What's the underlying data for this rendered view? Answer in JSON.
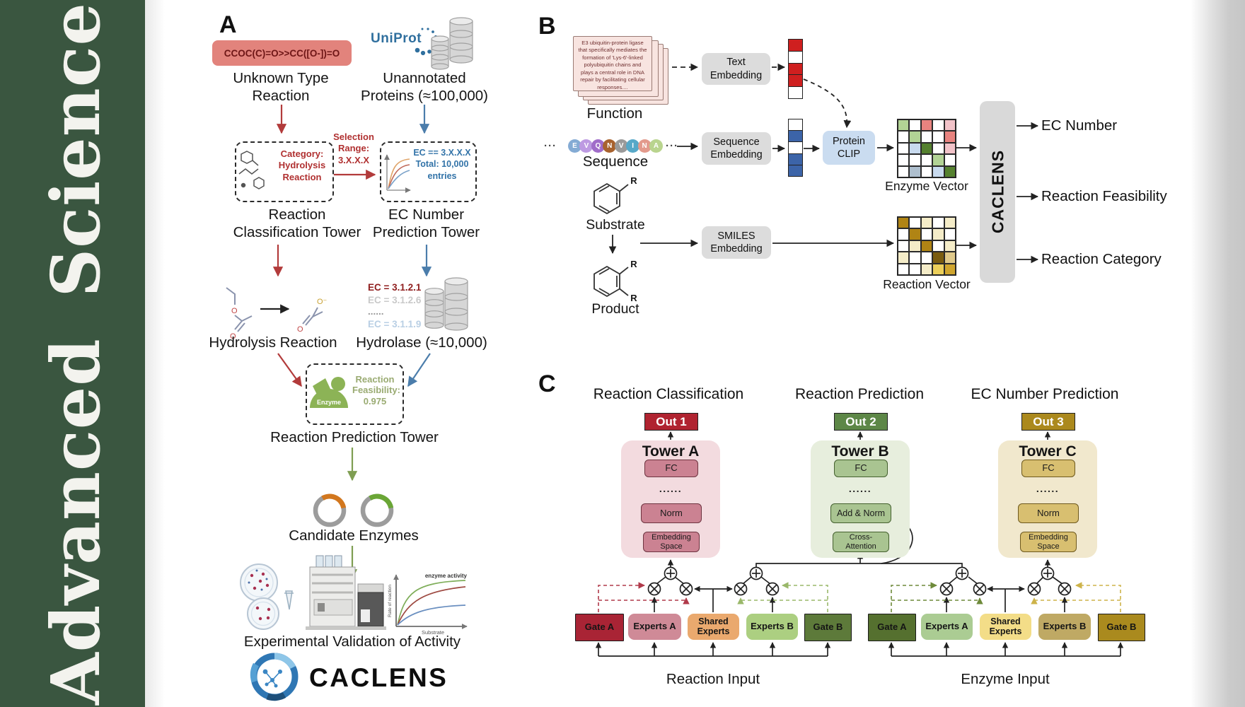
{
  "journal": {
    "name_words": [
      "Advanced",
      "Science"
    ],
    "bar_color": "#3a5640"
  },
  "panels": {
    "a": {
      "label": "A",
      "smiles_box": "CCOC(C)=O>>CC([O-])=O",
      "unknown_reaction": "Unknown Type\nReaction",
      "uniprot_logo": "UniProt",
      "unannotated": "Unannotated\nProteins (≈100,000)",
      "selection_range": "Selection\nRange:\n3.X.X.X",
      "category_box": "Category:\nHydrolysis\nReaction",
      "ec_filter_box": "EC == 3.X.X.X\nTotal: 10,000\nentries",
      "classification_tower": "Reaction\nClassification Tower",
      "ec_tower": "EC Number\nPrediction Tower",
      "ec_list": [
        {
          "text": "EC = 3.1.2.1",
          "color": "#8f1d1d"
        },
        {
          "text": "EC = 3.1.2.6",
          "color": "#c9c9c9"
        },
        {
          "text": "......",
          "color": "#9a9a9a"
        },
        {
          "text": "EC = 3.1.1.9",
          "color": "#b9cfe4"
        }
      ],
      "hydrolysis_reaction": "Hydrolysis Reaction",
      "hydrolase": "Hydrolase (≈10,000)",
      "enzyme_blob": "Enzyme",
      "feasibility": "Reaction\nFeasibility:\n0.975",
      "prediction_tower": "Reaction Prediction Tower",
      "candidate_enzymes": "Candidate Enzymes",
      "activity_plot": {
        "ylabel": "Rate of reaction",
        "xlabel": "Substrate",
        "annotation": "enzyme activity"
      },
      "validation": "Experimental Validation of Activity",
      "brand": "CACLENS",
      "atoms": {
        "o": "O",
        "o_minus": "O⁻"
      }
    },
    "b": {
      "label": "B",
      "function_card": "E3 ubiquitin-protein ligase that specifically mediates the formation of 'Lys-6'-linked polyubiquitin chains and plays a central role in DNA repair by facilitating cellular responses....",
      "function_label": "Function",
      "ellipsis": "···",
      "sequence": [
        {
          "letter": "E",
          "color": "#84abd4"
        },
        {
          "letter": "V",
          "color": "#bd9ae2"
        },
        {
          "letter": "Q",
          "color": "#a06cc9"
        },
        {
          "letter": "N",
          "color": "#a8622e"
        },
        {
          "letter": "V",
          "color": "#9a9a9a"
        },
        {
          "letter": "I",
          "color": "#57a8c8"
        },
        {
          "letter": "N",
          "color": "#e39a8c"
        },
        {
          "letter": "A",
          "color": "#b9d48e"
        }
      ],
      "sequence_label": "Sequence",
      "substrate_label": "Substrate",
      "product_label": "Product",
      "r_group": "R",
      "text_embedding": "Text\nEmbedding",
      "sequence_embedding": "Sequence\nEmbedding",
      "smiles_embedding": "SMILES\nEmbedding",
      "protein_clip": "Protein\nCLIP",
      "text_vector": [
        "#cf1f1f",
        "#ffffff",
        "#cf1f1f",
        "#cf1f1f",
        "#ffffff"
      ],
      "sequence_vector": [
        "#ffffff",
        "#3c64a8",
        "#ffffff",
        "#3c64a8",
        "#3c64a8"
      ],
      "enzyme_vector": {
        "label": "Enzyme Vector",
        "cells": [
          [
            "#b2d395",
            "#ffffff",
            "#e8837f",
            "#ffffff",
            "#f2c3c9"
          ],
          [
            "#ffffff",
            "#b2d395",
            "#ffffff",
            "#ffffff",
            "#e8837f"
          ],
          [
            "#ffffff",
            "#c8daee",
            "#55812f",
            "#ffffff",
            "#f2c3c9"
          ],
          [
            "#ffffff",
            "#ffffff",
            "#ffffff",
            "#b2d395",
            "#ffffff"
          ],
          [
            "#ffffff",
            "#aebfce",
            "#ffffff",
            "#c8daee",
            "#55812f"
          ]
        ]
      },
      "reaction_vector": {
        "label": "Reaction Vector",
        "cells": [
          [
            "#b08414",
            "#ffffff",
            "#f4ecc8",
            "#ffffff",
            "#f4ecc8"
          ],
          [
            "#ffffff",
            "#b08414",
            "#ffffff",
            "#f4ecc8",
            "#ffffff"
          ],
          [
            "#ffffff",
            "#f4ecc8",
            "#b08414",
            "#ffffff",
            "#f4ecc8"
          ],
          [
            "#f4ecc8",
            "#ffffff",
            "#ffffff",
            "#7a5c10",
            "#dfc98a"
          ],
          [
            "#ffffff",
            "#ffffff",
            "#f4ecc8",
            "#eccf5a",
            "#cfa52e"
          ]
        ]
      },
      "model_name": "CACLENS",
      "outputs": [
        "EC Number",
        "Reaction Feasibility",
        "Reaction Category"
      ]
    },
    "c": {
      "label": "C",
      "headers": [
        "Reaction Classification",
        "Reaction Prediction",
        "EC Number Prediction"
      ],
      "towers": [
        {
          "out": "Out 1",
          "name": "Tower A",
          "fc": "FC",
          "dots": "......",
          "mid": "Norm",
          "base": "Embedding\nSpace",
          "out_color": "#b02330",
          "bg": "#f3dbdf",
          "box": "#cb8292",
          "box_border": "#6e3440"
        },
        {
          "out": "Out 2",
          "name": "Tower B",
          "fc": "FC",
          "dots": "......",
          "mid": "Add & Norm",
          "base": "Cross-\nAttention",
          "out_color": "#5d8747",
          "bg": "#e7eedd",
          "box": "#a9c491",
          "box_border": "#44602e"
        },
        {
          "out": "Out 3",
          "name": "Tower C",
          "fc": "FC",
          "dots": "......",
          "mid": "Norm",
          "base": "Embedding\nSpace",
          "out_color": "#ab891d",
          "bg": "#f1e8cd",
          "box": "#d8bf70",
          "box_border": "#6e591d"
        }
      ],
      "reaction_group": [
        {
          "label": "Gate A",
          "fill": "#a92435"
        },
        {
          "label": "Experts A",
          "fill": "#cf8a97"
        },
        {
          "label": "Shared\nExperts",
          "fill": "#eaa96e"
        },
        {
          "label": "Experts B",
          "fill": "#accf81"
        },
        {
          "label": "Gate B",
          "fill": "#5d7a3a"
        }
      ],
      "enzyme_group": [
        {
          "label": "Gate A",
          "fill": "#55702f"
        },
        {
          "label": "Experts A",
          "fill": "#abcc93"
        },
        {
          "label": "Shared\nExperts",
          "fill": "#f3dd88"
        },
        {
          "label": "Experts B",
          "fill": "#bfa964"
        },
        {
          "label": "Gate B",
          "fill": "#aa8a1e"
        }
      ],
      "input_labels": [
        "Reaction Input",
        "Enzyme Input"
      ]
    }
  }
}
